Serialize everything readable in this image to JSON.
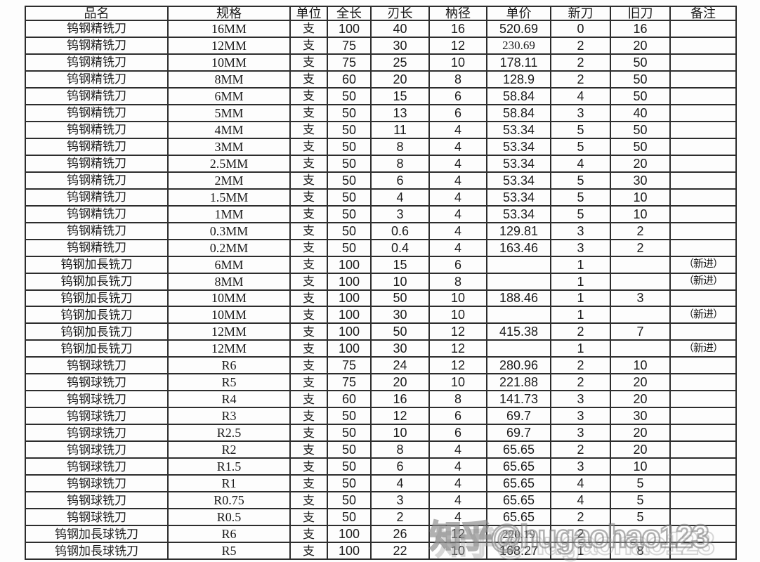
{
  "table": {
    "columns": [
      {
        "key": "product_name",
        "label": "品名"
      },
      {
        "key": "spec",
        "label": "规格"
      },
      {
        "key": "unit",
        "label": "单位"
      },
      {
        "key": "overall_length",
        "label": "全长"
      },
      {
        "key": "blade_length",
        "label": "刃长"
      },
      {
        "key": "shank_diameter",
        "label": "枘径"
      },
      {
        "key": "unit_price",
        "label": "单价"
      },
      {
        "key": "new_count",
        "label": "新刀"
      },
      {
        "key": "old_count",
        "label": "旧刀"
      },
      {
        "key": "remark",
        "label": "备注"
      }
    ],
    "rows": [
      {
        "cells": [
          "钨钢精铣刀",
          "16MM",
          "支",
          "100",
          "40",
          "16",
          "520.69",
          "0",
          "16",
          ""
        ]
      },
      {
        "cells": [
          "钨钢精铣刀",
          "12MM",
          "支",
          "75",
          "30",
          "12",
          "230.69",
          "2",
          "20",
          ""
        ],
        "price_serif": true
      },
      {
        "cells": [
          "钨钢精铣刀",
          "10MM",
          "支",
          "75",
          "25",
          "10",
          "178.11",
          "2",
          "50",
          ""
        ]
      },
      {
        "cells": [
          "钨钢精铣刀",
          "8MM",
          "支",
          "60",
          "20",
          "8",
          "128.9",
          "2",
          "50",
          ""
        ]
      },
      {
        "cells": [
          "钨钢精铣刀",
          "6MM",
          "支",
          "50",
          "15",
          "6",
          "58.84",
          "4",
          "50",
          ""
        ]
      },
      {
        "cells": [
          "钨钢精铣刀",
          "5MM",
          "支",
          "50",
          "13",
          "6",
          "58.84",
          "3",
          "40",
          ""
        ]
      },
      {
        "cells": [
          "钨钢精铣刀",
          "4MM",
          "支",
          "50",
          "11",
          "4",
          "53.34",
          "5",
          "50",
          ""
        ]
      },
      {
        "cells": [
          "钨钢精铣刀",
          "3MM",
          "支",
          "50",
          "8",
          "4",
          "53.34",
          "5",
          "50",
          ""
        ]
      },
      {
        "cells": [
          "钨钢精铣刀",
          "2.5MM",
          "支",
          "50",
          "8",
          "4",
          "53.34",
          "4",
          "20",
          ""
        ]
      },
      {
        "cells": [
          "钨钢精铣刀",
          "2MM",
          "支",
          "50",
          "6",
          "4",
          "53.34",
          "5",
          "30",
          ""
        ]
      },
      {
        "cells": [
          "钨钢精铣刀",
          "1.5MM",
          "支",
          "50",
          "4",
          "4",
          "53.34",
          "5",
          "10",
          ""
        ]
      },
      {
        "cells": [
          "钨钢精铣刀",
          "1MM",
          "支",
          "50",
          "3",
          "4",
          "53.34",
          "5",
          "10",
          ""
        ]
      },
      {
        "cells": [
          "钨钢精铣刀",
          "0.3MM",
          "支",
          "50",
          "0.6",
          "4",
          "129.81",
          "3",
          "2",
          ""
        ]
      },
      {
        "cells": [
          "钨钢精铣刀",
          "0.2MM",
          "支",
          "50",
          "0.4",
          "4",
          "163.46",
          "3",
          "2",
          ""
        ]
      },
      {
        "cells": [
          "钨钢加長铣刀",
          "6MM",
          "支",
          "100",
          "15",
          "6",
          "",
          "1",
          "",
          "（新进）"
        ]
      },
      {
        "cells": [
          "钨钢加長铣刀",
          "8MM",
          "支",
          "100",
          "10",
          "8",
          "",
          "1",
          "",
          "（新进）"
        ]
      },
      {
        "cells": [
          "钨钢加長铣刀",
          "10MM",
          "支",
          "100",
          "50",
          "10",
          "188.46",
          "1",
          "3",
          ""
        ]
      },
      {
        "cells": [
          "钨钢加長铣刀",
          "10MM",
          "支",
          "100",
          "30",
          "10",
          "",
          "1",
          "",
          "（新进）"
        ]
      },
      {
        "cells": [
          "钨钢加長铣刀",
          "12MM",
          "支",
          "100",
          "50",
          "12",
          "415.38",
          "2",
          "7",
          ""
        ]
      },
      {
        "cells": [
          "钨钢加長铣刀",
          "12MM",
          "支",
          "100",
          "30",
          "12",
          "",
          "1",
          "",
          "（新进）"
        ]
      },
      {
        "cells": [
          "钨钢球铣刀",
          "R6",
          "支",
          "75",
          "24",
          "12",
          "280.96",
          "2",
          "10",
          ""
        ]
      },
      {
        "cells": [
          "钨钢球铣刀",
          "R5",
          "支",
          "75",
          "20",
          "10",
          "221.88",
          "2",
          "20",
          ""
        ]
      },
      {
        "cells": [
          "钨钢球铣刀",
          "R4",
          "支",
          "60",
          "16",
          "8",
          "141.73",
          "3",
          "20",
          ""
        ]
      },
      {
        "cells": [
          "钨钢球铣刀",
          "R3",
          "支",
          "50",
          "12",
          "6",
          "69.7",
          "3",
          "30",
          ""
        ]
      },
      {
        "cells": [
          "钨钢球铣刀",
          "R2.5",
          "支",
          "50",
          "10",
          "6",
          "69.7",
          "3",
          "20",
          ""
        ]
      },
      {
        "cells": [
          "钨钢球铣刀",
          "R2",
          "支",
          "50",
          "8",
          "4",
          "65.65",
          "2",
          "20",
          ""
        ]
      },
      {
        "cells": [
          "钨钢球铣刀",
          "R1.5",
          "支",
          "50",
          "6",
          "4",
          "65.65",
          "3",
          "10",
          ""
        ]
      },
      {
        "cells": [
          "钨钢球铣刀",
          "R1",
          "支",
          "50",
          "4",
          "4",
          "65.65",
          "4",
          "5",
          ""
        ]
      },
      {
        "cells": [
          "钨钢球铣刀",
          "R0.75",
          "支",
          "50",
          "3",
          "4",
          "65.65",
          "4",
          "5",
          ""
        ]
      },
      {
        "cells": [
          "钨钢球铣刀",
          "R0.5",
          "支",
          "50",
          "2",
          "4",
          "65.65",
          "2",
          "5",
          ""
        ]
      },
      {
        "cells": [
          "钨钢加長球铣刀",
          "R6",
          "支",
          "100",
          "26",
          "12",
          "220.19",
          "2",
          "",
          ""
        ],
        "price_serif": true
      },
      {
        "cells": [
          "钨钢加長球铣刀",
          "R5",
          "支",
          "100",
          "22",
          "10",
          "168.27",
          "1",
          "8",
          ""
        ]
      }
    ]
  },
  "watermark": {
    "text": "知乎@hugaohao123"
  },
  "colors": {
    "background": "#fdfdfd",
    "border": "#2d2d2d",
    "text": "#1b1b1b",
    "watermark_stroke": "#737373"
  }
}
